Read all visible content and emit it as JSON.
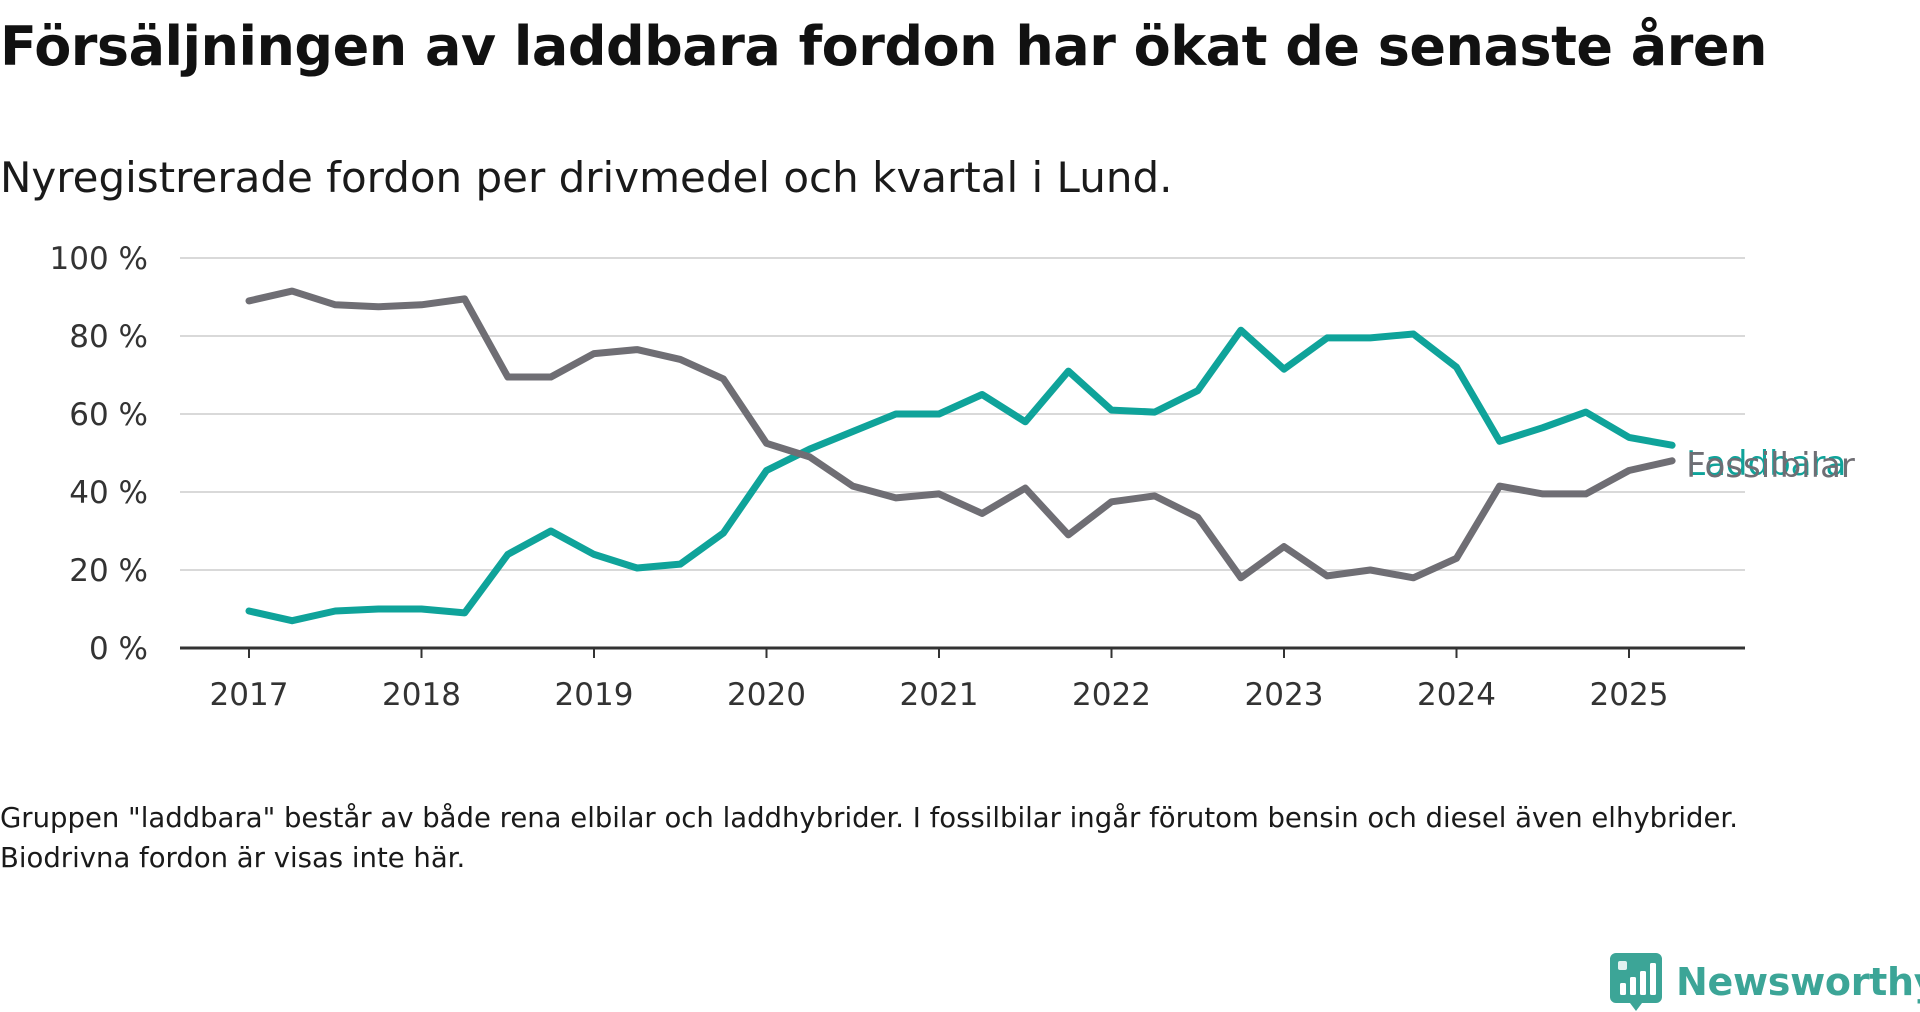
{
  "header": {
    "title": "Försäljningen av laddbara fordon har ökat de senaste åren",
    "subtitle": "Nyregistrerade fordon per drivmedel och kvartal i Lund."
  },
  "footnote": "Gruppen \"laddbara\" består av både rena elbilar och laddhybrider. I fossilbilar ingår förutom bensin och diesel även elhybrider. Biodrivna fordon är visas inte här.",
  "brand": {
    "name": "Newsworthy",
    "icon": "newsworthy-logo-icon",
    "color": "#3ca597"
  },
  "chart_data": {
    "type": "line",
    "title": "Försäljningen av laddbara fordon har ökat de senaste åren",
    "subtitle": "Nyregistrerade fordon per drivmedel och kvartal i Lund.",
    "xlabel": "",
    "ylabel": "",
    "ylim": [
      0,
      100
    ],
    "xlim": [
      2016.6,
      2026.0
    ],
    "y_ticks": [
      0,
      20,
      40,
      60,
      80,
      100
    ],
    "y_tick_labels": [
      "0 %",
      "20 %",
      "40 %",
      "60 %",
      "80 %",
      "100 %"
    ],
    "x_ticks": [
      2017,
      2018,
      2019,
      2020,
      2021,
      2022,
      2023,
      2024,
      2025
    ],
    "x_tick_labels": [
      "2017",
      "2018",
      "2019",
      "2020",
      "2021",
      "2022",
      "2023",
      "2024",
      "2025"
    ],
    "grid": true,
    "legend": "direct labels at line ends (right)",
    "x": [
      2017.0,
      2017.25,
      2017.5,
      2017.75,
      2018.0,
      2018.25,
      2018.5,
      2018.75,
      2019.0,
      2019.25,
      2019.5,
      2019.75,
      2020.0,
      2020.25,
      2020.5,
      2020.75,
      2021.0,
      2021.25,
      2021.5,
      2021.75,
      2022.0,
      2022.25,
      2022.5,
      2022.75,
      2023.0,
      2023.25,
      2023.5,
      2023.75,
      2024.0,
      2024.25,
      2024.5,
      2024.75,
      2025.0,
      2025.25
    ],
    "series": [
      {
        "name": "Laddbara",
        "color": "#0fa39a",
        "values": [
          9.5,
          7,
          9.5,
          10,
          10,
          9,
          24,
          30,
          24,
          20.5,
          21.5,
          29.5,
          45.5,
          51,
          55.5,
          60,
          60,
          65,
          58,
          71,
          61,
          60.5,
          66,
          81.5,
          71.5,
          79.5,
          79.5,
          80.5,
          72,
          53,
          56.5,
          60.5,
          54,
          52
        ]
      },
      {
        "name": "Fossilbilar",
        "color": "#6f6e74",
        "values": [
          89,
          91.5,
          88,
          87.5,
          88,
          89.5,
          69.5,
          69.5,
          75.5,
          76.5,
          74,
          69,
          52.5,
          49,
          41.5,
          38.5,
          39.5,
          34.5,
          41,
          29,
          37.5,
          39,
          33.5,
          18,
          26,
          18.5,
          20,
          18,
          23,
          41.5,
          39.5,
          39.5,
          45.5,
          48
        ]
      }
    ]
  }
}
